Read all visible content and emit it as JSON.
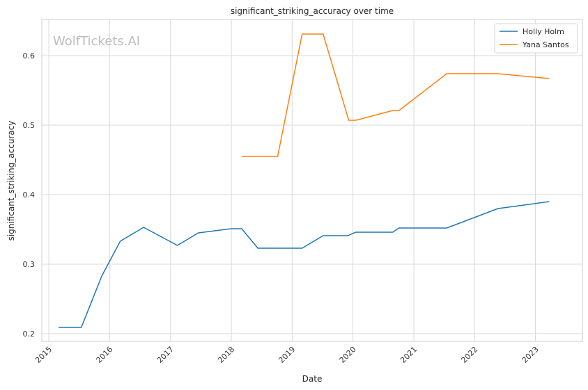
{
  "chart_data": {
    "type": "line",
    "title": "significant_striking_accuracy over time",
    "xlabel": "Date",
    "ylabel": "significant_striking_accuracy",
    "watermark": "WolfTickets.AI",
    "x_ticks": [
      "2015",
      "2016",
      "2017",
      "2018",
      "2019",
      "2020",
      "2021",
      "2022",
      "2023"
    ],
    "y_ticks": [
      "0.2",
      "0.3",
      "0.4",
      "0.5",
      "0.6"
    ],
    "xlim": [
      "2014-11-20",
      "2023-10-10"
    ],
    "ylim": [
      0.189,
      0.652
    ],
    "grid": true,
    "legend_position": "top-right",
    "series": [
      {
        "name": "Holly Holm",
        "color": "#1f77b4",
        "points": [
          [
            "2015-03-01",
            0.209
          ],
          [
            "2015-07-15",
            0.209
          ],
          [
            "2015-11-15",
            0.283
          ],
          [
            "2016-03-05",
            0.333
          ],
          [
            "2016-07-23",
            0.353
          ],
          [
            "2017-02-11",
            0.327
          ],
          [
            "2017-06-17",
            0.345
          ],
          [
            "2017-12-30",
            0.351
          ],
          [
            "2018-03-04",
            0.351
          ],
          [
            "2018-06-09",
            0.323
          ],
          [
            "2019-03-02",
            0.323
          ],
          [
            "2019-07-06",
            0.341
          ],
          [
            "2019-12-01",
            0.341
          ],
          [
            "2020-01-18",
            0.346
          ],
          [
            "2020-08-27",
            0.346
          ],
          [
            "2020-10-03",
            0.352
          ],
          [
            "2021-07-17",
            0.352
          ],
          [
            "2022-05-21",
            0.38
          ],
          [
            "2023-03-25",
            0.39
          ]
        ]
      },
      {
        "name": "Yana Santos",
        "color": "#ff7f0e",
        "points": [
          [
            "2018-03-04",
            0.455
          ],
          [
            "2018-10-06",
            0.455
          ],
          [
            "2019-03-02",
            0.631
          ],
          [
            "2019-07-06",
            0.631
          ],
          [
            "2019-12-07",
            0.507
          ],
          [
            "2020-01-18",
            0.507
          ],
          [
            "2020-08-27",
            0.521
          ],
          [
            "2020-10-03",
            0.521
          ],
          [
            "2021-07-17",
            0.574
          ],
          [
            "2022-05-21",
            0.574
          ],
          [
            "2023-03-25",
            0.567
          ]
        ]
      }
    ]
  }
}
